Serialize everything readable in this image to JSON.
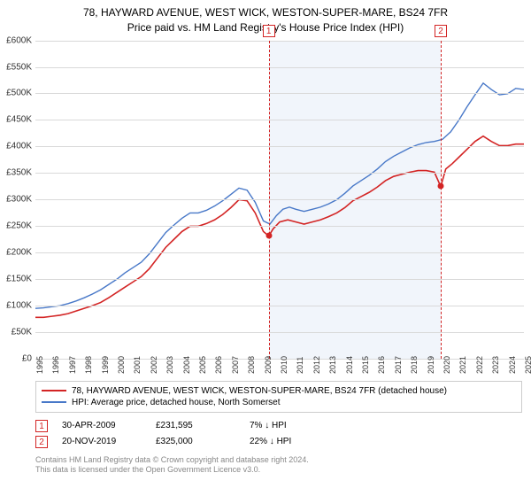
{
  "title_line1": "78, HAYWARD AVENUE, WEST WICK, WESTON-SUPER-MARE, BS24 7FR",
  "title_line2": "Price paid vs. HM Land Registry's House Price Index (HPI)",
  "chart": {
    "type": "line",
    "background_color": "#ffffff",
    "grid_color": "#d9d9d9",
    "shade_color": "#f1f5fb",
    "x_years": [
      "1995",
      "1996",
      "1997",
      "1998",
      "1999",
      "2000",
      "2001",
      "2002",
      "2003",
      "2004",
      "2005",
      "2006",
      "2007",
      "2008",
      "2009",
      "2010",
      "2011",
      "2012",
      "2013",
      "2014",
      "2015",
      "2016",
      "2017",
      "2018",
      "2019",
      "2020",
      "2021",
      "2022",
      "2023",
      "2024",
      "2025"
    ],
    "y_ticks": [
      "£0",
      "£50K",
      "£100K",
      "£150K",
      "£200K",
      "£250K",
      "£300K",
      "£350K",
      "£400K",
      "£450K",
      "£500K",
      "£550K",
      "£600K"
    ],
    "ylim": [
      0,
      600000
    ],
    "label_fontsize": 10,
    "series": [
      {
        "id": "property",
        "label": "78, HAYWARD AVENUE, WEST WICK, WESTON-SUPER-MARE, BS24 7FR (detached house)",
        "color": "#d32424",
        "width": 1.6,
        "data": [
          [
            1995.0,
            78000
          ],
          [
            1995.5,
            78000
          ],
          [
            1996.0,
            80000
          ],
          [
            1996.5,
            82000
          ],
          [
            1997.0,
            85000
          ],
          [
            1997.5,
            90000
          ],
          [
            1998.0,
            95000
          ],
          [
            1998.5,
            100000
          ],
          [
            1999.0,
            106000
          ],
          [
            1999.5,
            115000
          ],
          [
            2000.0,
            125000
          ],
          [
            2000.5,
            135000
          ],
          [
            2001.0,
            145000
          ],
          [
            2001.5,
            155000
          ],
          [
            2002.0,
            170000
          ],
          [
            2002.5,
            190000
          ],
          [
            2003.0,
            210000
          ],
          [
            2003.5,
            225000
          ],
          [
            2004.0,
            240000
          ],
          [
            2004.5,
            250000
          ],
          [
            2005.0,
            250000
          ],
          [
            2005.5,
            255000
          ],
          [
            2006.0,
            262000
          ],
          [
            2006.5,
            272000
          ],
          [
            2007.0,
            285000
          ],
          [
            2007.5,
            300000
          ],
          [
            2008.0,
            298000
          ],
          [
            2008.5,
            275000
          ],
          [
            2009.0,
            240000
          ],
          [
            2009.33,
            231595
          ],
          [
            2009.6,
            245000
          ],
          [
            2010.0,
            258000
          ],
          [
            2010.5,
            262000
          ],
          [
            2011.0,
            258000
          ],
          [
            2011.5,
            254000
          ],
          [
            2012.0,
            258000
          ],
          [
            2012.5,
            262000
          ],
          [
            2013.0,
            268000
          ],
          [
            2013.5,
            275000
          ],
          [
            2014.0,
            285000
          ],
          [
            2014.5,
            298000
          ],
          [
            2015.0,
            306000
          ],
          [
            2015.5,
            314000
          ],
          [
            2016.0,
            324000
          ],
          [
            2016.5,
            336000
          ],
          [
            2017.0,
            344000
          ],
          [
            2017.5,
            348000
          ],
          [
            2018.0,
            352000
          ],
          [
            2018.5,
            355000
          ],
          [
            2019.0,
            355000
          ],
          [
            2019.5,
            352000
          ],
          [
            2019.89,
            325000
          ],
          [
            2020.2,
            358000
          ],
          [
            2020.6,
            368000
          ],
          [
            2021.0,
            380000
          ],
          [
            2021.5,
            395000
          ],
          [
            2022.0,
            410000
          ],
          [
            2022.5,
            420000
          ],
          [
            2023.0,
            410000
          ],
          [
            2023.5,
            402000
          ],
          [
            2024.0,
            402000
          ],
          [
            2024.5,
            405000
          ],
          [
            2025.0,
            405000
          ]
        ]
      },
      {
        "id": "hpi",
        "label": "HPI: Average price, detached house, North Somerset",
        "color": "#4878c8",
        "width": 1.4,
        "data": [
          [
            1995.0,
            95000
          ],
          [
            1995.5,
            96000
          ],
          [
            1996.0,
            98000
          ],
          [
            1996.5,
            100000
          ],
          [
            1997.0,
            104000
          ],
          [
            1997.5,
            109000
          ],
          [
            1998.0,
            115000
          ],
          [
            1998.5,
            122000
          ],
          [
            1999.0,
            130000
          ],
          [
            1999.5,
            140000
          ],
          [
            2000.0,
            150000
          ],
          [
            2000.5,
            162000
          ],
          [
            2001.0,
            172000
          ],
          [
            2001.5,
            182000
          ],
          [
            2002.0,
            198000
          ],
          [
            2002.5,
            218000
          ],
          [
            2003.0,
            238000
          ],
          [
            2003.5,
            252000
          ],
          [
            2004.0,
            265000
          ],
          [
            2004.5,
            275000
          ],
          [
            2005.0,
            275000
          ],
          [
            2005.5,
            280000
          ],
          [
            2006.0,
            288000
          ],
          [
            2006.5,
            298000
          ],
          [
            2007.0,
            310000
          ],
          [
            2007.5,
            322000
          ],
          [
            2008.0,
            318000
          ],
          [
            2008.5,
            295000
          ],
          [
            2009.0,
            260000
          ],
          [
            2009.4,
            254000
          ],
          [
            2009.8,
            270000
          ],
          [
            2010.2,
            282000
          ],
          [
            2010.6,
            286000
          ],
          [
            2011.0,
            282000
          ],
          [
            2011.5,
            278000
          ],
          [
            2012.0,
            282000
          ],
          [
            2012.5,
            286000
          ],
          [
            2013.0,
            292000
          ],
          [
            2013.5,
            300000
          ],
          [
            2014.0,
            312000
          ],
          [
            2014.5,
            326000
          ],
          [
            2015.0,
            336000
          ],
          [
            2015.5,
            346000
          ],
          [
            2016.0,
            358000
          ],
          [
            2016.5,
            372000
          ],
          [
            2017.0,
            382000
          ],
          [
            2017.5,
            390000
          ],
          [
            2018.0,
            398000
          ],
          [
            2018.5,
            404000
          ],
          [
            2019.0,
            408000
          ],
          [
            2019.5,
            410000
          ],
          [
            2020.0,
            414000
          ],
          [
            2020.5,
            428000
          ],
          [
            2021.0,
            450000
          ],
          [
            2021.5,
            475000
          ],
          [
            2022.0,
            498000
          ],
          [
            2022.5,
            520000
          ],
          [
            2023.0,
            508000
          ],
          [
            2023.5,
            498000
          ],
          [
            2024.0,
            500000
          ],
          [
            2024.5,
            510000
          ],
          [
            2025.0,
            508000
          ]
        ]
      }
    ],
    "sales": [
      {
        "n": "1",
        "year": 2009.33,
        "price": 231595,
        "date": "30-APR-2009",
        "price_label": "£231,595",
        "delta": "7% ↓ HPI",
        "color": "#d32424"
      },
      {
        "n": "2",
        "year": 2019.89,
        "price": 325000,
        "date": "20-NOV-2019",
        "price_label": "£325,000",
        "delta": "22% ↓ HPI",
        "color": "#d32424"
      }
    ]
  },
  "footer_line1": "Contains HM Land Registry data © Crown copyright and database right 2024.",
  "footer_line2": "This data is licensed under the Open Government Licence v3.0."
}
